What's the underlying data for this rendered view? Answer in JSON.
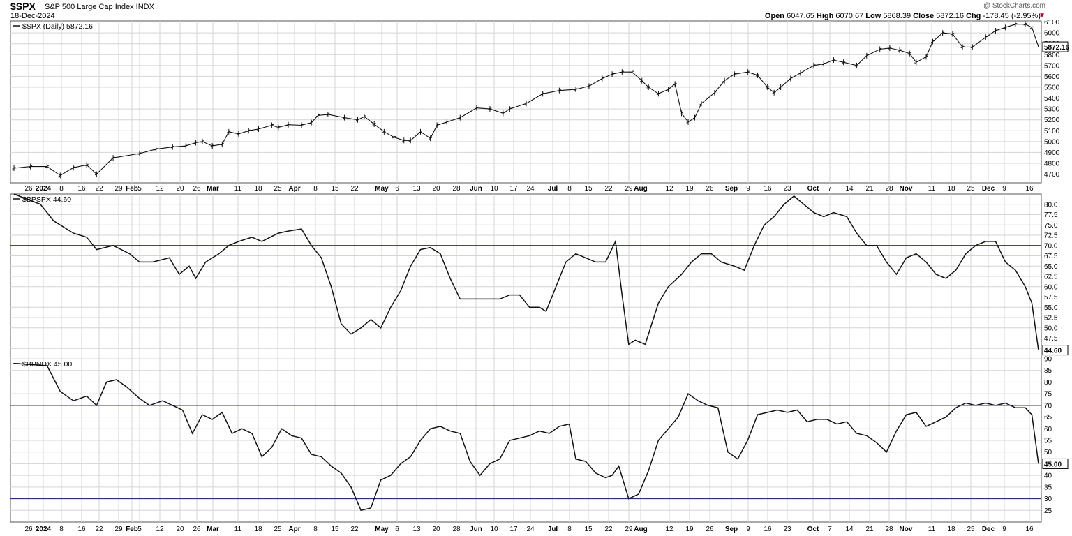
{
  "header": {
    "ticker": "$SPX",
    "description": "S&P 500 Large Cap Index  INDX",
    "date": "18-Dec-2024",
    "brand": "@ StockCharts.com",
    "open_label": "Open",
    "open": "6047.65",
    "high_label": "High",
    "high": "6070.67",
    "low_label": "Low",
    "low": "5868.39",
    "close_label": "Close",
    "close": "5872.16",
    "chg_label": "Chg",
    "chg": "-178.45 (-2.95%)",
    "chg_arrow": "▼"
  },
  "colors": {
    "line": "#111111",
    "grid": "#d4d4d4",
    "reference": "#2c2f7a",
    "panel_border": "#555555"
  },
  "chart_data": [
    {
      "type": "ohlc",
      "legend": "$SPX (Daily) 5872.16",
      "last_label": "5872.16",
      "ylim": [
        4620,
        6110
      ],
      "yticks": [
        4700,
        4800,
        4900,
        5000,
        5100,
        5200,
        5300,
        5400,
        5500,
        5600,
        5700,
        5800,
        5900,
        6000,
        6100
      ],
      "x_tick_labels": [
        "26",
        "2024",
        "8",
        "16",
        "22",
        "29",
        "Feb",
        "5",
        "12",
        "20",
        "26",
        "Mar",
        "11",
        "18",
        "25",
        "Apr",
        "8",
        "15",
        "22",
        "May",
        "6",
        "13",
        "20",
        "28",
        "Jun",
        "10",
        "17",
        "24",
        "Jul",
        "8",
        "15",
        "22",
        "29",
        "Aug",
        "12",
        "19",
        "26",
        "Sep",
        "9",
        "16",
        "23",
        "Oct",
        "7",
        "14",
        "21",
        "28",
        "Nov",
        "11",
        "18",
        "25",
        "Dec",
        "9",
        "16"
      ],
      "close_path": [
        [
          0,
          4755
        ],
        [
          5,
          4770
        ],
        [
          10,
          4770
        ],
        [
          14,
          4688
        ],
        [
          18,
          4760
        ],
        [
          22,
          4785
        ],
        [
          25,
          4700
        ],
        [
          30,
          4850
        ],
        [
          38,
          4890
        ],
        [
          43,
          4930
        ],
        [
          48,
          4950
        ],
        [
          52,
          4960
        ],
        [
          55,
          4990
        ],
        [
          57,
          5000
        ],
        [
          60,
          4960
        ],
        [
          63,
          4975
        ],
        [
          65,
          5090
        ],
        [
          68,
          5070
        ],
        [
          71,
          5100
        ],
        [
          74,
          5115
        ],
        [
          78,
          5150
        ],
        [
          80,
          5130
        ],
        [
          83,
          5155
        ],
        [
          87,
          5150
        ],
        [
          90,
          5175
        ],
        [
          92,
          5240
        ],
        [
          95,
          5250
        ],
        [
          100,
          5220
        ],
        [
          104,
          5200
        ],
        [
          106,
          5230
        ],
        [
          109,
          5160
        ],
        [
          112,
          5090
        ],
        [
          115,
          5040
        ],
        [
          118,
          5010
        ],
        [
          120,
          5010
        ],
        [
          123,
          5090
        ],
        [
          126,
          5030
        ],
        [
          128,
          5150
        ],
        [
          131,
          5180
        ],
        [
          135,
          5220
        ],
        [
          140,
          5310
        ],
        [
          144,
          5300
        ],
        [
          148,
          5260
        ],
        [
          150,
          5300
        ],
        [
          155,
          5350
        ],
        [
          160,
          5440
        ],
        [
          165,
          5470
        ],
        [
          170,
          5480
        ],
        [
          174,
          5510
        ],
        [
          178,
          5580
        ],
        [
          181,
          5620
        ],
        [
          184,
          5640
        ],
        [
          187,
          5640
        ],
        [
          190,
          5560
        ],
        [
          192,
          5500
        ],
        [
          195,
          5440
        ],
        [
          198,
          5480
        ],
        [
          200,
          5530
        ],
        [
          202,
          5260
        ],
        [
          204,
          5180
        ],
        [
          206,
          5220
        ],
        [
          208,
          5350
        ],
        [
          212,
          5450
        ],
        [
          215,
          5560
        ],
        [
          218,
          5620
        ],
        [
          222,
          5640
        ],
        [
          225,
          5610
        ],
        [
          228,
          5500
        ],
        [
          230,
          5450
        ],
        [
          232,
          5500
        ],
        [
          235,
          5580
        ],
        [
          238,
          5630
        ],
        [
          242,
          5700
        ],
        [
          245,
          5715
        ],
        [
          248,
          5750
        ],
        [
          251,
          5730
        ],
        [
          255,
          5700
        ],
        [
          258,
          5790
        ],
        [
          262,
          5850
        ],
        [
          265,
          5860
        ],
        [
          268,
          5840
        ],
        [
          271,
          5810
        ],
        [
          273,
          5730
        ],
        [
          276,
          5780
        ],
        [
          278,
          5920
        ],
        [
          281,
          6000
        ],
        [
          284,
          5990
        ],
        [
          287,
          5870
        ],
        [
          290,
          5870
        ],
        [
          294,
          5960
        ],
        [
          297,
          6020
        ],
        [
          300,
          6050
        ],
        [
          303,
          6080
        ],
        [
          306,
          6080
        ],
        [
          308,
          6050
        ],
        [
          310,
          5872
        ]
      ]
    },
    {
      "type": "line",
      "legend": "$BPSPX 44.60",
      "last_label": "44.60",
      "ylim": [
        42.5,
        82.5
      ],
      "yticks": [
        45.0,
        47.5,
        50.0,
        52.5,
        55.0,
        57.5,
        60.0,
        62.5,
        65.0,
        67.5,
        70.0,
        72.5,
        75.0,
        77.5,
        80.0
      ],
      "reference_lines": [
        70
      ],
      "points": [
        [
          0,
          83
        ],
        [
          8,
          80
        ],
        [
          12,
          76
        ],
        [
          18,
          73
        ],
        [
          22,
          72
        ],
        [
          25,
          69
        ],
        [
          30,
          70
        ],
        [
          35,
          68
        ],
        [
          38,
          66
        ],
        [
          42,
          66
        ],
        [
          47,
          67
        ],
        [
          50,
          63
        ],
        [
          53,
          65
        ],
        [
          55,
          62
        ],
        [
          58,
          66
        ],
        [
          62,
          68
        ],
        [
          65,
          70
        ],
        [
          68,
          71
        ],
        [
          72,
          72
        ],
        [
          75,
          71
        ],
        [
          80,
          73
        ],
        [
          83,
          73.5
        ],
        [
          87,
          74
        ],
        [
          90,
          70
        ],
        [
          93,
          67
        ],
        [
          96,
          60
        ],
        [
          99,
          51
        ],
        [
          102,
          48.5
        ],
        [
          105,
          50
        ],
        [
          108,
          52
        ],
        [
          111,
          50
        ],
        [
          114,
          55
        ],
        [
          117,
          59
        ],
        [
          120,
          65
        ],
        [
          123,
          69
        ],
        [
          126,
          69.5
        ],
        [
          129,
          68
        ],
        [
          132,
          62
        ],
        [
          135,
          57
        ],
        [
          138,
          57
        ],
        [
          141,
          57
        ],
        [
          144,
          57
        ],
        [
          147,
          57
        ],
        [
          150,
          58
        ],
        [
          153,
          58
        ],
        [
          156,
          55
        ],
        [
          159,
          55
        ],
        [
          161,
          54
        ],
        [
          164,
          60
        ],
        [
          167,
          66
        ],
        [
          170,
          68
        ],
        [
          173,
          67
        ],
        [
          176,
          66
        ],
        [
          179,
          66
        ],
        [
          182,
          71
        ],
        [
          184,
          58
        ],
        [
          186,
          46
        ],
        [
          188,
          47
        ],
        [
          191,
          46
        ],
        [
          193,
          51
        ],
        [
          195,
          56
        ],
        [
          198,
          60
        ],
        [
          202,
          63
        ],
        [
          205,
          66
        ],
        [
          208,
          68
        ],
        [
          211,
          68
        ],
        [
          214,
          66
        ],
        [
          218,
          65
        ],
        [
          221,
          64
        ],
        [
          224,
          70
        ],
        [
          227,
          75
        ],
        [
          230,
          77
        ],
        [
          233,
          80
        ],
        [
          236,
          82
        ],
        [
          239,
          80
        ],
        [
          242,
          78
        ],
        [
          245,
          77
        ],
        [
          248,
          78
        ],
        [
          252,
          77
        ],
        [
          255,
          73
        ],
        [
          258,
          70
        ],
        [
          261,
          70
        ],
        [
          264,
          66
        ],
        [
          267,
          63
        ],
        [
          270,
          67
        ],
        [
          273,
          68
        ],
        [
          276,
          66
        ],
        [
          279,
          63
        ],
        [
          282,
          62
        ],
        [
          285,
          64
        ],
        [
          288,
          68
        ],
        [
          291,
          70
        ],
        [
          294,
          71
        ],
        [
          297,
          71
        ],
        [
          300,
          66
        ],
        [
          303,
          64
        ],
        [
          306,
          60
        ],
        [
          308,
          56
        ],
        [
          310,
          44.6
        ]
      ]
    },
    {
      "type": "line",
      "legend": "$BPNDX 45.00",
      "last_label": "45.00",
      "ylim": [
        20,
        90
      ],
      "yticks": [
        25,
        30,
        35,
        40,
        45,
        50,
        55,
        60,
        65,
        70,
        75,
        80,
        85,
        90
      ],
      "reference_lines": [
        70,
        30
      ],
      "points": [
        [
          0,
          88
        ],
        [
          10,
          87
        ],
        [
          14,
          76
        ],
        [
          18,
          72
        ],
        [
          22,
          74
        ],
        [
          25,
          70
        ],
        [
          28,
          80
        ],
        [
          31,
          81
        ],
        [
          34,
          78
        ],
        [
          38,
          73
        ],
        [
          41,
          70
        ],
        [
          45,
          72
        ],
        [
          48,
          70
        ],
        [
          51,
          68
        ],
        [
          54,
          58
        ],
        [
          57,
          66
        ],
        [
          60,
          64
        ],
        [
          63,
          67
        ],
        [
          66,
          58
        ],
        [
          69,
          60
        ],
        [
          72,
          58
        ],
        [
          75,
          48
        ],
        [
          78,
          52
        ],
        [
          81,
          60
        ],
        [
          84,
          57
        ],
        [
          87,
          56
        ],
        [
          90,
          49
        ],
        [
          93,
          48
        ],
        [
          96,
          44
        ],
        [
          99,
          41
        ],
        [
          102,
          35
        ],
        [
          105,
          25
        ],
        [
          108,
          26
        ],
        [
          111,
          38
        ],
        [
          114,
          40
        ],
        [
          117,
          45
        ],
        [
          120,
          48
        ],
        [
          123,
          55
        ],
        [
          126,
          60
        ],
        [
          129,
          61
        ],
        [
          132,
          59
        ],
        [
          135,
          58
        ],
        [
          138,
          46
        ],
        [
          141,
          40
        ],
        [
          144,
          45
        ],
        [
          147,
          47
        ],
        [
          150,
          55
        ],
        [
          153,
          56
        ],
        [
          156,
          57
        ],
        [
          159,
          59
        ],
        [
          162,
          58
        ],
        [
          165,
          61
        ],
        [
          168,
          62
        ],
        [
          170,
          47
        ],
        [
          173,
          46
        ],
        [
          176,
          41
        ],
        [
          179,
          39
        ],
        [
          181,
          40
        ],
        [
          183,
          44
        ],
        [
          186,
          30
        ],
        [
          189,
          32
        ],
        [
          192,
          42
        ],
        [
          195,
          55
        ],
        [
          198,
          60
        ],
        [
          201,
          65
        ],
        [
          204,
          75
        ],
        [
          207,
          72
        ],
        [
          210,
          70
        ],
        [
          213,
          69
        ],
        [
          216,
          50
        ],
        [
          219,
          47
        ],
        [
          222,
          55
        ],
        [
          225,
          66
        ],
        [
          228,
          67
        ],
        [
          231,
          68
        ],
        [
          234,
          67
        ],
        [
          237,
          68
        ],
        [
          240,
          63
        ],
        [
          243,
          64
        ],
        [
          246,
          64
        ],
        [
          249,
          62
        ],
        [
          252,
          63
        ],
        [
          255,
          58
        ],
        [
          258,
          57
        ],
        [
          261,
          54
        ],
        [
          264,
          50
        ],
        [
          267,
          59
        ],
        [
          270,
          66
        ],
        [
          273,
          67
        ],
        [
          276,
          61
        ],
        [
          279,
          63
        ],
        [
          282,
          65
        ],
        [
          285,
          69
        ],
        [
          288,
          71
        ],
        [
          291,
          70
        ],
        [
          294,
          71
        ],
        [
          297,
          70
        ],
        [
          300,
          71
        ],
        [
          303,
          69
        ],
        [
          306,
          69
        ],
        [
          308,
          66
        ],
        [
          310,
          45
        ]
      ]
    }
  ]
}
